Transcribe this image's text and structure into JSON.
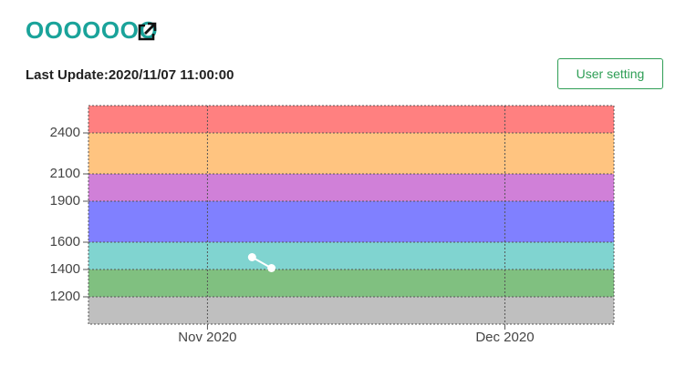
{
  "header": {
    "title": "OOOOOOO",
    "last_update": "Last Update:2020/11/07 11:00:00",
    "button": "User setting"
  },
  "chart_data": {
    "type": "line",
    "x": [
      "2020-11-05T12:00",
      "2020-11-07T11:00"
    ],
    "series": [
      {
        "color": "#ffffff",
        "values": [
          1490,
          1410
        ]
      }
    ],
    "xlim": [
      "2020-10-20",
      "2020-12-12"
    ],
    "xticks": [
      {
        "value": "2020-11-01",
        "label": "Nov 2020"
      },
      {
        "value": "2020-12-01",
        "label": "Dec 2020"
      }
    ],
    "ylim": [
      1000,
      2600
    ],
    "yticks": [
      1200,
      1400,
      1600,
      1900,
      2100,
      2400
    ],
    "bands": [
      {
        "from": 1000,
        "to": 1200,
        "color": "#bfbfbf"
      },
      {
        "from": 1200,
        "to": 1400,
        "color": "#80c080"
      },
      {
        "from": 1400,
        "to": 1600,
        "color": "#80d4d0"
      },
      {
        "from": 1600,
        "to": 1900,
        "color": "#8080ff"
      },
      {
        "from": 1900,
        "to": 2100,
        "color": "#d080d8"
      },
      {
        "from": 2100,
        "to": 2400,
        "color": "#ffc480"
      },
      {
        "from": 2400,
        "to": 2600,
        "color": "#ff8080"
      }
    ],
    "grid": true
  }
}
